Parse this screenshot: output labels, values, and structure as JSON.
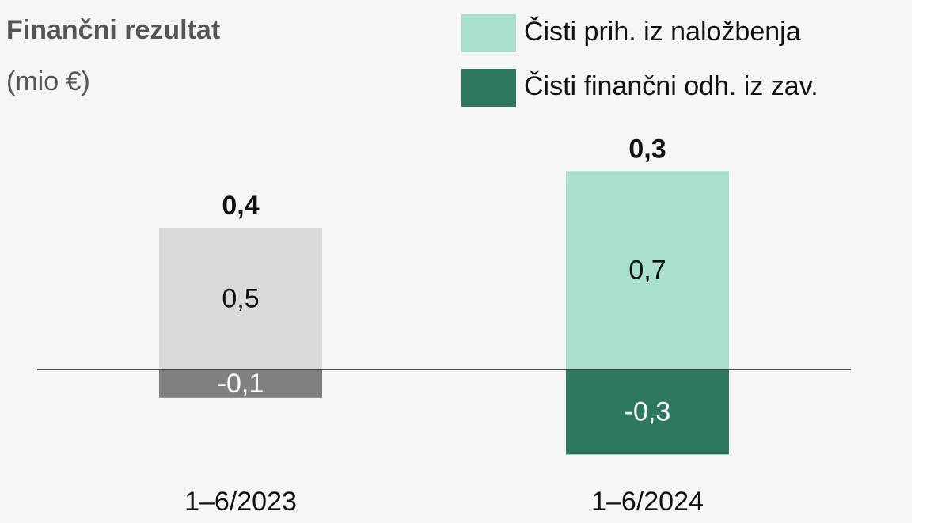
{
  "chart_data": {
    "type": "stacked_bar",
    "title": "Finančni rezultat",
    "subtitle": "(mio €)",
    "categories": [
      "1–6/2023",
      "1–6/2024"
    ],
    "series": [
      {
        "name": "Čisti prih. iz naložbenja",
        "color": "#a8dfcf",
        "colors": [
          "#d9d9d9",
          "#a8dfcf"
        ],
        "label_color": "#111111",
        "values": [
          0.5,
          0.7
        ],
        "value_labels": [
          "0,5",
          "0,7"
        ]
      },
      {
        "name": "Čisti finančni odh. iz zav.",
        "color": "#2e7760",
        "colors": [
          "#808080",
          "#2e7760"
        ],
        "label_color": "#ffffff",
        "values": [
          -0.1,
          -0.3
        ],
        "value_labels": [
          "-0,1",
          "-0,3"
        ]
      }
    ],
    "totals": [
      0.4,
      0.3
    ],
    "total_labels": [
      "0,4",
      "0,3"
    ]
  }
}
